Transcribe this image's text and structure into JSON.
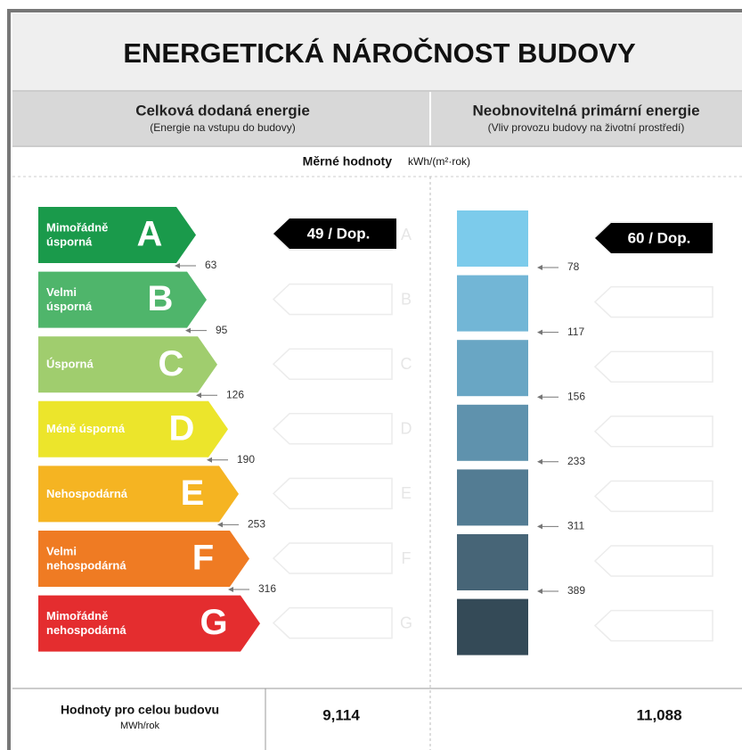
{
  "title": "ENERGETICKÁ NÁROČNOST BUDOVY",
  "left": {
    "heading": "Celková dodaná energie",
    "subheading": "(Energie na vstupu do budovy)",
    "rating": "49 / Dop.",
    "thresholds": [
      63,
      95,
      126,
      190,
      253,
      316
    ]
  },
  "right": {
    "heading": "Neobnovitelná primární energie",
    "subheading": "(Vliv provozu budovy na životní prostředí)",
    "rating": "60 / Dop.",
    "thresholds": [
      78,
      117,
      156,
      233,
      311,
      389
    ],
    "bar_colors": [
      "#7ccbeb",
      "#72b6d6",
      "#69a6c4",
      "#5f92ad",
      "#537c93",
      "#476577",
      "#344a57"
    ]
  },
  "unit_row": {
    "label": "Měrné hodnoty",
    "unit": "kWh/(m²·rok)"
  },
  "classes": [
    {
      "letter": "A",
      "label": [
        "Mimořádně",
        "úsporná"
      ],
      "color": "#1a9a4b"
    },
    {
      "letter": "B",
      "label": [
        "Velmi",
        "úsporná"
      ],
      "color": "#4fb56b"
    },
    {
      "letter": "C",
      "label": [
        "Úsporná"
      ],
      "color": "#a0cd6e"
    },
    {
      "letter": "D",
      "label": [
        "Méně úsporná"
      ],
      "color": "#ece52b"
    },
    {
      "letter": "E",
      "label": [
        "Nehospodárná"
      ],
      "color": "#f5b422"
    },
    {
      "letter": "F",
      "label": [
        "Velmi",
        "nehospodárná"
      ],
      "color": "#ef7b23"
    },
    {
      "letter": "G",
      "label": [
        "Mimořádně",
        "nehospodárná"
      ],
      "color": "#e42d2f"
    }
  ],
  "footer": {
    "label": "Hodnoty pro celou budovu",
    "unit": "MWh/rok",
    "left_value": "9,114",
    "right_value": "11,088"
  }
}
